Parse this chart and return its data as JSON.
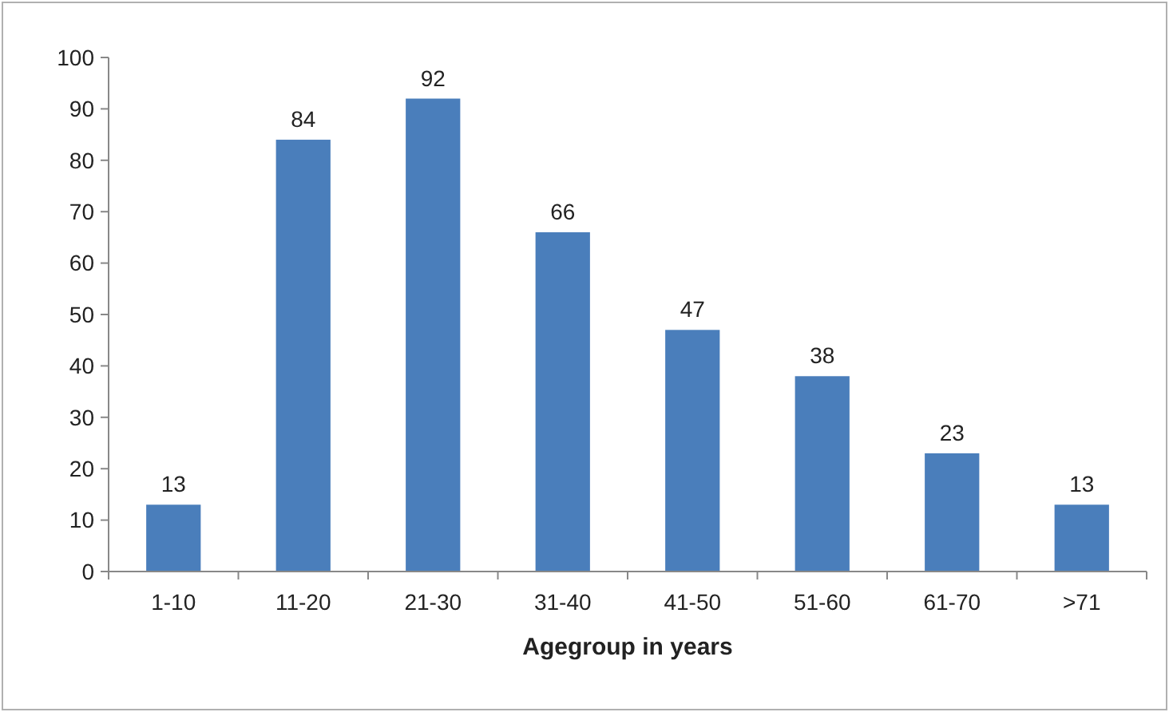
{
  "chart_data": {
    "type": "bar",
    "xlabel": "Agegroup in years",
    "categories": [
      "1-10",
      "11-20",
      "21-30",
      "31-40",
      "41-50",
      "51-60",
      "61-70",
      ">71"
    ],
    "values": [
      13,
      84,
      92,
      66,
      47,
      38,
      23,
      13
    ],
    "color": "#4a7ebb",
    "ylim": [
      0,
      100
    ],
    "yticks": [
      0,
      10,
      20,
      30,
      40,
      50,
      60,
      70,
      80,
      90,
      100
    ],
    "grid": false,
    "data_labels": true
  }
}
